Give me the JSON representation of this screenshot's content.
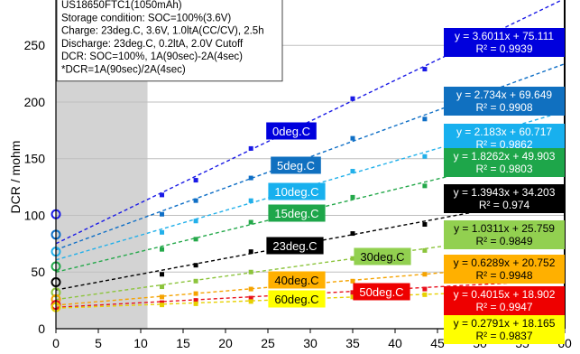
{
  "chart_data": {
    "type": "scatter",
    "title": "",
    "xlabel": "",
    "ylabel": "DCR / mohm",
    "xlim": [
      0,
      60
    ],
    "ylim": [
      0,
      290
    ],
    "x_ticks": [
      "0",
      "5",
      "10",
      "15",
      "20",
      "25",
      "30",
      "35",
      "40",
      "45",
      "50",
      "55",
      "60"
    ],
    "y_ticks": [
      "0",
      "50",
      "100",
      "150",
      "200",
      "250"
    ],
    "grid": "horizontal",
    "shaded_region": [
      0,
      10.8
    ],
    "conditions": [
      "US18650FTC1(1050mAh)",
      "Storage condition: SOC=100%(3.6V)",
      "Charge: 23deg.C, 3.6V, 1.0ltA(CC/CV), 2.5h",
      "Discharge: 23deg.C, 0.2ltA, 2.0V Cutoff",
      "DCR: SOC=100%, 1A(90sec)-2A(4sec)",
      "*DCR=1A(90sec)/2A(4sec)"
    ],
    "series": [
      {
        "name": "0deg.C",
        "color": "#1a1ae6",
        "label_bg": "#0000dd",
        "label_fg": "#ffffff",
        "slope": 3.6011,
        "intercept": 75.111,
        "equation": "y = 3.6011x + 75.111",
        "r2": "R² = 0.9939",
        "eq_bg": "#0000dd",
        "eq_fg": "#ffffff",
        "x": [
          0,
          12.5,
          16.5,
          23,
          35,
          43.5
        ],
        "y": [
          101,
          118,
          131,
          159,
          203,
          229
        ]
      },
      {
        "name": "5deg.C",
        "color": "#0f6fc6",
        "label_bg": "#1070c0",
        "label_fg": "#ffffff",
        "slope": 2.734,
        "intercept": 69.649,
        "equation": "y = 2.734x + 69.649",
        "r2": "R² = 0.9908",
        "eq_bg": "#1070c0",
        "eq_fg": "#ffffff",
        "x": [
          0,
          12.5,
          16.5,
          23,
          35,
          43.5
        ],
        "y": [
          83,
          101,
          113,
          133,
          168,
          185
        ]
      },
      {
        "name": "10deg.C",
        "color": "#22b0ea",
        "label_bg": "#18b0ee",
        "label_fg": "#ffffff",
        "slope": 2.183,
        "intercept": 60.717,
        "equation": "y = 2.183x + 60.717",
        "r2": "R² = 0.9862",
        "eq_bg": "#18b0ee",
        "eq_fg": "#ffffff",
        "x": [
          0,
          12.5,
          16.5,
          23,
          35,
          43.5
        ],
        "y": [
          68,
          85,
          95,
          113,
          139,
          152
        ]
      },
      {
        "name": "15deg.C",
        "color": "#24a84a",
        "label_bg": "#1ea64a",
        "label_fg": "#ffffff",
        "slope": 1.8262,
        "intercept": 49.903,
        "equation": "y = 1.8262x + 49.903",
        "r2": "R² = 0.9803",
        "eq_bg": "#1ea64a",
        "eq_fg": "#ffffff",
        "x": [
          0,
          12.5,
          16.5,
          23,
          35,
          43.5
        ],
        "y": [
          55,
          70,
          79,
          94,
          116,
          126
        ]
      },
      {
        "name": "23deg.C",
        "color": "#000000",
        "label_bg": "#000000",
        "label_fg": "#ffffff",
        "slope": 1.3943,
        "intercept": 34.203,
        "equation": "y = 1.3943x + 34.203",
        "r2": "R² = 0.974",
        "eq_bg": "#000000",
        "eq_fg": "#ffffff",
        "x": [
          0,
          12.5,
          16.5,
          23,
          35,
          43.5
        ],
        "y": [
          41,
          48,
          56,
          68,
          84,
          92
        ]
      },
      {
        "name": "30deg.C",
        "color": "#8cc43c",
        "label_bg": "#92d050",
        "label_fg": "#000000",
        "slope": 1.0311,
        "intercept": 25.759,
        "equation": "y = 1.0311x + 25.759",
        "r2": "R² = 0.9849",
        "eq_bg": "#92d050",
        "eq_fg": "#000000",
        "x": [
          0,
          12.5,
          16.5,
          23,
          35,
          43.5
        ],
        "y": [
          32,
          37,
          42,
          50,
          62,
          69
        ]
      },
      {
        "name": "40deg.C",
        "color": "#f5a300",
        "label_bg": "#ffb000",
        "label_fg": "#000000",
        "slope": 0.6289,
        "intercept": 20.752,
        "equation": "y = 0.6289x + 20.752",
        "r2": "R² = 0.9948",
        "eq_bg": "#ffb000",
        "eq_fg": "#000000",
        "x": [
          0,
          12.5,
          16.5,
          23,
          35,
          43.5
        ],
        "y": [
          26,
          28,
          31,
          35,
          42,
          48
        ]
      },
      {
        "name": "50deg.C",
        "color": "#e8101c",
        "label_bg": "#ee0000",
        "label_fg": "#ffffff",
        "slope": 0.4015,
        "intercept": 18.902,
        "equation": "y = 0.4015x + 18.902",
        "r2": "R² = 0.9947",
        "eq_bg": "#ee0000",
        "eq_fg": "#ffffff",
        "x": [
          0,
          12.5,
          16.5,
          23,
          35,
          43.5
        ],
        "y": [
          21,
          23,
          25,
          27,
          32,
          35
        ]
      },
      {
        "name": "60deg.C",
        "color": "#e6d000",
        "label_bg": "#ffff00",
        "label_fg": "#000000",
        "slope": 0.2791,
        "intercept": 18.165,
        "equation": "y = 0.2791x + 18.165",
        "r2": "R² = 0.9837",
        "eq_bg": "#ffff00",
        "eq_fg": "#000000",
        "x": [
          0,
          12.5,
          16.5,
          23,
          35,
          43.5
        ],
        "y": [
          19,
          21,
          22,
          24,
          28,
          30
        ]
      }
    ]
  }
}
